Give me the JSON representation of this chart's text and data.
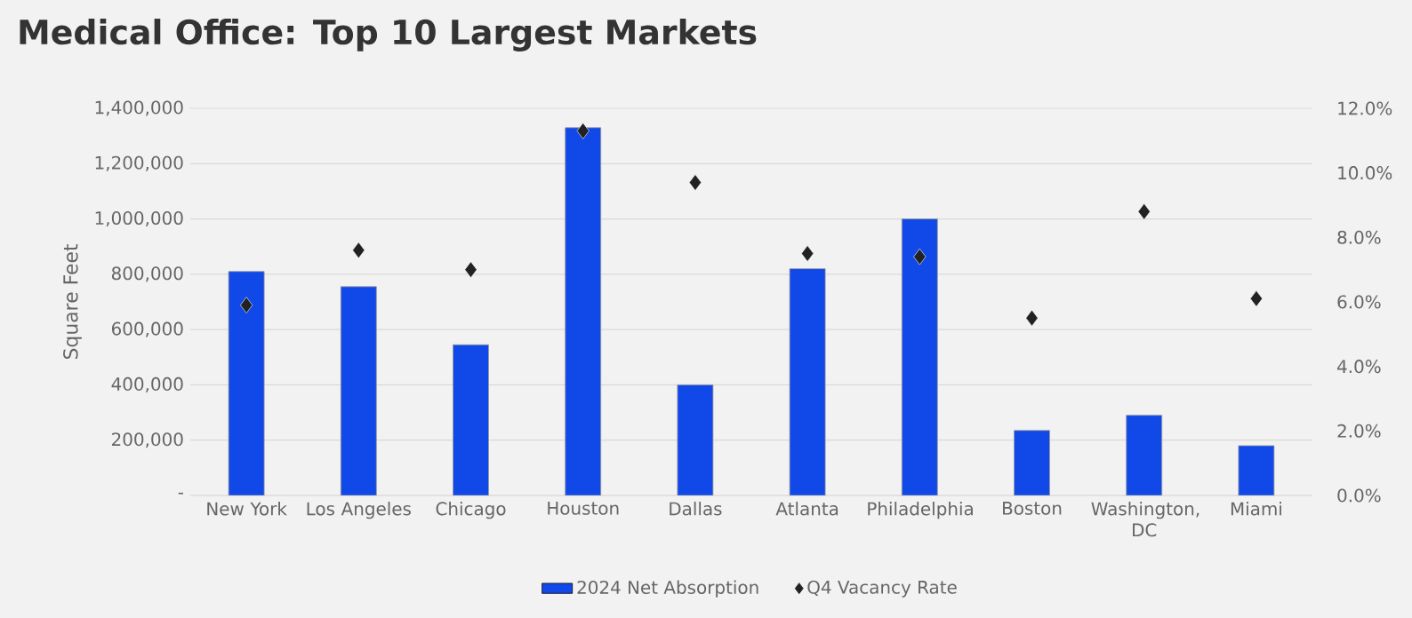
{
  "chart_data": {
    "type": "bar",
    "title": "Medical Office: Top 10 Largest Markets",
    "ylabel": "Square Feet",
    "categories": [
      "New York",
      "Los Angeles",
      "Chicago",
      "Houston",
      "Dallas",
      "Atlanta",
      "Philadelphia",
      "Boston",
      "Washington, DC",
      "Miami"
    ],
    "series": [
      {
        "name": "2024 Net Absorption",
        "color": "#1148e8",
        "values": [
          810000,
          755000,
          545000,
          1330000,
          400000,
          820000,
          1000000,
          235000,
          290000,
          180000
        ]
      },
      {
        "name": "Q4 Vacancy Rate",
        "type": "scatter",
        "axis": "y2",
        "color": "#222222",
        "values": [
          5.9,
          7.6,
          7.0,
          11.3,
          9.7,
          7.5,
          7.4,
          5.5,
          8.8,
          6.1
        ]
      }
    ],
    "ylim": [
      0,
      1400000
    ],
    "yticks": [
      {
        "value": 0,
        "label": "-"
      },
      {
        "value": 200000,
        "label": "200,000"
      },
      {
        "value": 400000,
        "label": "400,000"
      },
      {
        "value": 600000,
        "label": "600,000"
      },
      {
        "value": 800000,
        "label": "800,000"
      },
      {
        "value": 1000000,
        "label": "1,000,000"
      },
      {
        "value": 1200000,
        "label": "1,200,000"
      },
      {
        "value": 1400000,
        "label": "1,400,000"
      }
    ],
    "y2lim": [
      0,
      12
    ],
    "y2ticks": [
      {
        "value": 0,
        "label": "0.0%"
      },
      {
        "value": 2,
        "label": "2.0%"
      },
      {
        "value": 4,
        "label": "4.0%"
      },
      {
        "value": 6,
        "label": "6.0%"
      },
      {
        "value": 8,
        "label": "8.0%"
      },
      {
        "value": 10,
        "label": "10.0%"
      },
      {
        "value": 12,
        "label": "12.0%"
      }
    ],
    "grid": "y",
    "legend": "bottom",
    "marker": "diamond"
  }
}
